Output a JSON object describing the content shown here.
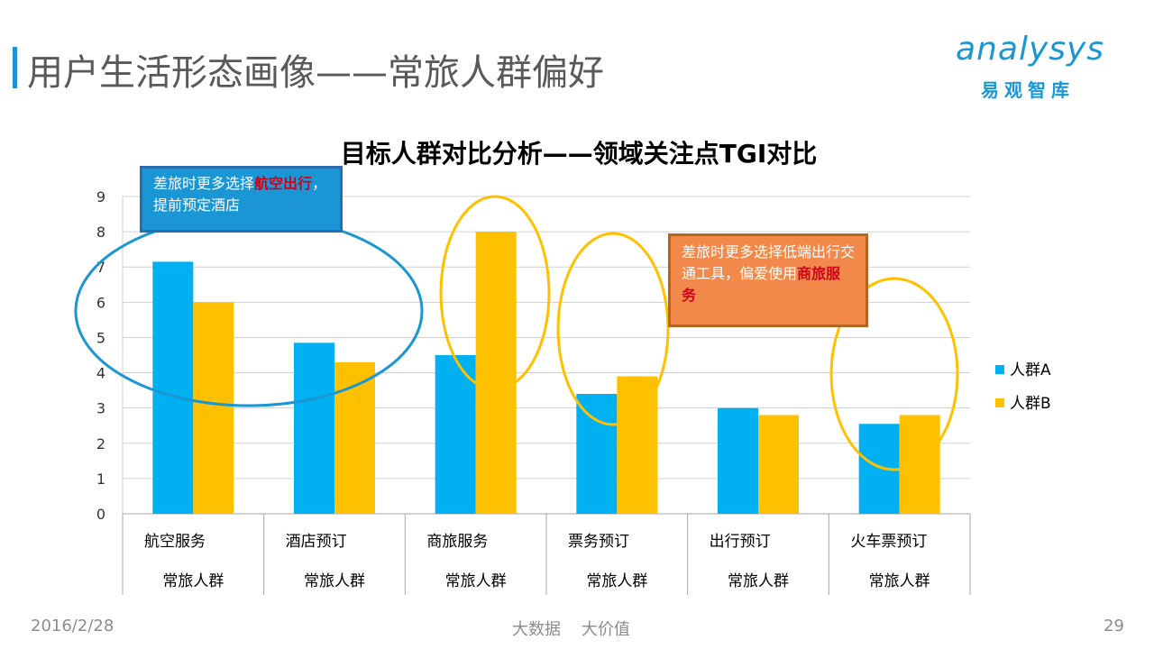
{
  "slide": {
    "title": "用户生活形态画像——常旅人群偏好",
    "logo_text": "analysys",
    "logo_sub": "易观智库"
  },
  "notes": {
    "a": {
      "pre": "差旅时更多选择",
      "hl": "航空出行",
      "post": "，提前预定酒店"
    },
    "b": {
      "pre": "差旅时更多选择低端出行交通工具，偏爱使用",
      "hl": "商旅服务",
      "post": ""
    }
  },
  "footer": {
    "date": "2016/2/28",
    "center": "大数据    大价值",
    "page": "29"
  },
  "colors": {
    "series_a": "#00b0f0",
    "series_b": "#ffc000",
    "accent": "#1a96d4"
  },
  "chart_data": {
    "type": "bar",
    "title": "目标人群对比分析——领域关注点TGI对比",
    "categories": [
      "航空服务",
      "酒店预订",
      "商旅服务",
      "票务预订",
      "出行预订",
      "火车票预订"
    ],
    "category_group": "常旅人群",
    "series": [
      {
        "name": "人群A",
        "values": [
          7.15,
          4.85,
          4.5,
          3.4,
          3.0,
          2.55
        ]
      },
      {
        "name": "人群B",
        "values": [
          6.0,
          4.3,
          8.0,
          3.9,
          2.8,
          2.8
        ]
      }
    ],
    "ylim": [
      0,
      9
    ],
    "yticks": [
      0,
      1,
      2,
      3,
      4,
      5,
      6,
      7,
      8,
      9
    ],
    "grid": true,
    "legend": "right"
  }
}
